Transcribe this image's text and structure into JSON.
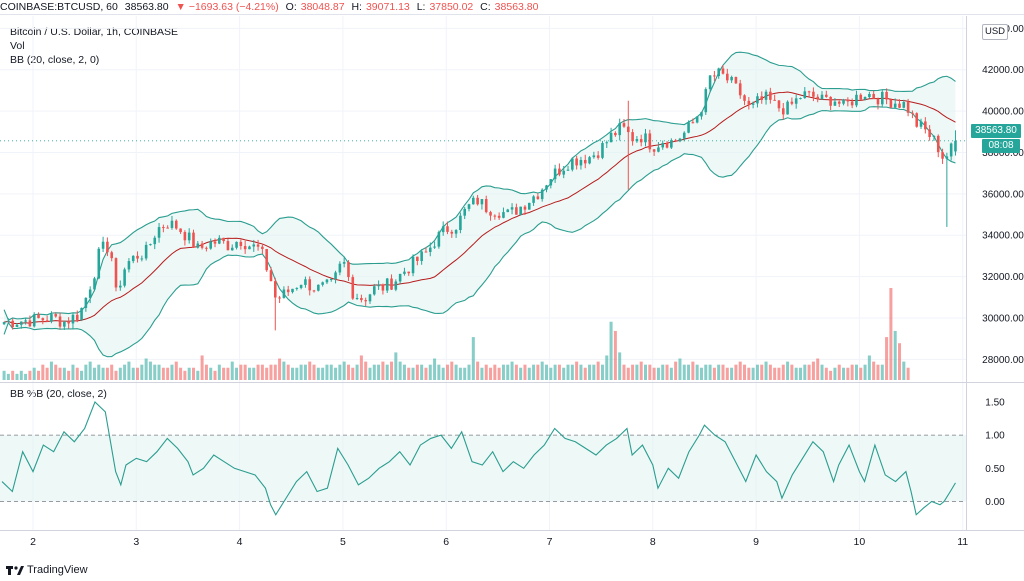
{
  "header": {
    "symbol": "COINBASE:BTCUSD, 60",
    "last": "38563.80",
    "change": "▼ −1693.63 (−4.21%)",
    "open_label": "O:",
    "open": "38048.87",
    "high_label": "H:",
    "high": "39071.13",
    "low_label": "L:",
    "low": "37850.02",
    "close_label": "C:",
    "close": "38563.80"
  },
  "legend": {
    "title": "Bitcoin / U.S. Dollar, 1h, COINBASE",
    "vol": "Vol",
    "bb": "BB (20, close, 2, 0)",
    "bbpct": "BB %B (20, close, 2)"
  },
  "price_axis": {
    "currency": "USD",
    "ticks": [
      "44000.00",
      "42000.00",
      "40000.00",
      "38000.00",
      "36000.00",
      "34000.00",
      "32000.00",
      "30000.00",
      "28000.00"
    ]
  },
  "price_tag": {
    "price": "38563.80",
    "countdown": "08:08"
  },
  "pct_axis": {
    "ticks": [
      "1.50",
      "1.00",
      "0.50",
      "0.00"
    ]
  },
  "time_axis": {
    "ticks": [
      "2",
      "3",
      "4",
      "5",
      "6",
      "7",
      "8",
      "9",
      "10",
      "11"
    ]
  },
  "footer": {
    "brand": "TradingView"
  },
  "colors": {
    "up": "#26a69a",
    "down": "#ef5350",
    "band": "#2a9d8f",
    "basis": "#b71c1c",
    "fill": "#e0f2f1"
  },
  "chart_data": [
    {
      "type": "candlestick",
      "title": "Bitcoin / U.S. Dollar, 1h, COINBASE",
      "x_ticks": [
        "2",
        "3",
        "4",
        "5",
        "6",
        "7",
        "8",
        "9",
        "10",
        "11"
      ],
      "ylim": [
        27000,
        44500
      ],
      "close_path": [
        [
          1.7,
          29800
        ],
        [
          2.0,
          29900
        ],
        [
          2.2,
          30000
        ],
        [
          2.3,
          29800
        ],
        [
          2.45,
          30200
        ],
        [
          2.5,
          30800
        ],
        [
          2.6,
          32300
        ],
        [
          2.65,
          33300
        ],
        [
          2.75,
          33500
        ],
        [
          2.8,
          31100
        ],
        [
          2.9,
          32600
        ],
        [
          3.0,
          33000
        ],
        [
          3.1,
          33200
        ],
        [
          3.2,
          34300
        ],
        [
          3.3,
          34600
        ],
        [
          3.4,
          34400
        ],
        [
          3.5,
          33900
        ],
        [
          3.6,
          33300
        ],
        [
          3.7,
          33600
        ],
        [
          3.8,
          33700
        ],
        [
          3.9,
          33500
        ],
        [
          4.0,
          33800
        ],
        [
          4.1,
          33500
        ],
        [
          4.2,
          33300
        ],
        [
          4.3,
          31900
        ],
        [
          4.35,
          30900
        ],
        [
          4.45,
          31200
        ],
        [
          4.6,
          31800
        ],
        [
          4.75,
          31400
        ],
        [
          4.9,
          31600
        ],
        [
          5.0,
          32800
        ],
        [
          5.1,
          31200
        ],
        [
          5.2,
          30900
        ],
        [
          5.3,
          31400
        ],
        [
          5.4,
          31500
        ],
        [
          5.5,
          31800
        ],
        [
          5.6,
          32300
        ],
        [
          5.8,
          33100
        ],
        [
          5.9,
          33800
        ],
        [
          6.0,
          34300
        ],
        [
          6.1,
          34500
        ],
        [
          6.2,
          35300
        ],
        [
          6.3,
          35700
        ],
        [
          6.4,
          35300
        ],
        [
          6.5,
          35200
        ],
        [
          6.6,
          35000
        ],
        [
          6.7,
          35300
        ],
        [
          6.8,
          35700
        ],
        [
          6.9,
          36100
        ],
        [
          7.0,
          36800
        ],
        [
          7.1,
          37200
        ],
        [
          7.2,
          37600
        ],
        [
          7.3,
          37700
        ],
        [
          7.4,
          37800
        ],
        [
          7.5,
          38200
        ],
        [
          7.6,
          38800
        ],
        [
          7.7,
          39200
        ],
        [
          7.8,
          38700
        ],
        [
          7.9,
          38800
        ],
        [
          8.0,
          38300
        ],
        [
          8.1,
          38600
        ],
        [
          8.2,
          38500
        ],
        [
          8.3,
          38900
        ],
        [
          8.4,
          39500
        ],
        [
          8.5,
          40500
        ],
        [
          8.55,
          41600
        ],
        [
          8.65,
          41800
        ],
        [
          8.75,
          41400
        ],
        [
          8.85,
          40800
        ],
        [
          8.95,
          40000
        ],
        [
          9.0,
          40400
        ],
        [
          9.1,
          40600
        ],
        [
          9.2,
          40200
        ],
        [
          9.3,
          40100
        ],
        [
          9.45,
          40800
        ],
        [
          9.55,
          40700
        ],
        [
          9.65,
          40500
        ],
        [
          9.75,
          40600
        ],
        [
          9.85,
          40200
        ],
        [
          9.95,
          40600
        ],
        [
          10.05,
          40900
        ],
        [
          10.15,
          40700
        ],
        [
          10.3,
          40500
        ],
        [
          10.45,
          40300
        ],
        [
          10.55,
          39400
        ],
        [
          10.65,
          39000
        ],
        [
          10.75,
          38400
        ],
        [
          10.8,
          37800
        ],
        [
          10.87,
          37900
        ],
        [
          10.92,
          38600
        ]
      ]
    },
    {
      "type": "bar",
      "title": "Vol",
      "values": [
        3,
        2,
        3,
        2,
        3,
        2,
        3,
        4,
        3,
        5,
        4,
        6,
        5,
        4,
        4,
        3,
        5,
        4,
        3,
        5,
        6,
        4,
        5,
        4,
        4,
        5,
        3,
        4,
        5,
        6,
        4,
        4,
        5,
        7,
        6,
        5,
        5,
        4,
        4,
        5,
        6,
        4,
        3,
        4,
        4,
        3,
        8,
        5,
        4,
        3,
        5,
        4,
        4,
        6,
        4,
        5,
        5,
        4,
        4,
        5,
        5,
        4,
        5,
        5,
        7,
        6,
        5,
        4,
        4,
        5,
        5,
        6,
        5,
        4,
        4,
        5,
        5,
        4,
        5,
        6,
        5,
        4,
        5,
        8,
        6,
        4,
        5,
        5,
        6,
        5,
        6,
        9,
        6,
        5,
        4,
        4,
        5,
        5,
        4,
        5,
        7,
        5,
        4,
        5,
        6,
        5,
        4,
        4,
        5,
        14,
        6,
        4,
        5,
        4,
        5,
        4,
        5,
        5,
        6,
        5,
        4,
        5,
        4,
        5,
        5,
        6,
        5,
        4,
        5,
        5,
        4,
        5,
        5,
        6,
        5,
        4,
        5,
        5,
        6,
        5,
        8,
        19,
        16,
        9,
        5,
        4,
        5,
        5,
        6,
        5,
        5,
        4,
        4,
        5,
        5,
        4,
        6,
        7,
        5,
        5,
        6,
        5,
        4,
        5,
        5,
        4,
        5,
        5,
        4,
        4,
        5,
        6,
        5,
        4,
        4,
        5,
        5,
        6,
        5,
        4,
        4,
        5,
        6,
        5,
        4,
        4,
        5,
        5,
        6,
        7,
        5,
        4,
        3,
        4,
        5,
        4,
        4,
        5,
        5,
        4,
        5,
        8,
        6,
        5,
        5,
        14,
        30,
        16,
        12,
        6,
        4
      ]
    },
    {
      "type": "line",
      "title": "BB %B (20, close, 2)",
      "ylim": [
        -0.4,
        1.65
      ],
      "y_ticks": [
        1.5,
        1.0,
        0.5,
        0.0
      ],
      "points": [
        [
          1.7,
          0.3
        ],
        [
          1.8,
          0.15
        ],
        [
          1.9,
          0.75
        ],
        [
          2.0,
          0.45
        ],
        [
          2.1,
          0.85
        ],
        [
          2.2,
          0.75
        ],
        [
          2.3,
          1.05
        ],
        [
          2.4,
          0.9
        ],
        [
          2.5,
          1.1
        ],
        [
          2.6,
          1.5
        ],
        [
          2.7,
          1.35
        ],
        [
          2.8,
          0.45
        ],
        [
          2.85,
          0.25
        ],
        [
          2.9,
          0.55
        ],
        [
          3.0,
          0.65
        ],
        [
          3.1,
          0.6
        ],
        [
          3.2,
          0.75
        ],
        [
          3.3,
          0.95
        ],
        [
          3.4,
          0.8
        ],
        [
          3.5,
          0.6
        ],
        [
          3.55,
          0.4
        ],
        [
          3.65,
          0.5
        ],
        [
          3.75,
          0.7
        ],
        [
          3.85,
          0.6
        ],
        [
          3.95,
          0.5
        ],
        [
          4.05,
          0.45
        ],
        [
          4.15,
          0.4
        ],
        [
          4.25,
          0.2
        ],
        [
          4.3,
          -0.05
        ],
        [
          4.35,
          -0.2
        ],
        [
          4.45,
          0.05
        ],
        [
          4.55,
          0.3
        ],
        [
          4.65,
          0.45
        ],
        [
          4.75,
          0.15
        ],
        [
          4.85,
          0.2
        ],
        [
          4.95,
          0.8
        ],
        [
          5.05,
          0.55
        ],
        [
          5.15,
          0.25
        ],
        [
          5.25,
          0.35
        ],
        [
          5.35,
          0.5
        ],
        [
          5.45,
          0.6
        ],
        [
          5.55,
          0.75
        ],
        [
          5.65,
          0.55
        ],
        [
          5.75,
          0.85
        ],
        [
          5.85,
          0.95
        ],
        [
          5.95,
          1.0
        ],
        [
          6.05,
          0.8
        ],
        [
          6.15,
          1.05
        ],
        [
          6.25,
          0.6
        ],
        [
          6.35,
          0.55
        ],
        [
          6.45,
          0.75
        ],
        [
          6.55,
          0.45
        ],
        [
          6.65,
          0.6
        ],
        [
          6.75,
          0.5
        ],
        [
          6.85,
          0.7
        ],
        [
          6.95,
          0.85
        ],
        [
          7.05,
          1.1
        ],
        [
          7.15,
          0.95
        ],
        [
          7.25,
          0.9
        ],
        [
          7.35,
          0.8
        ],
        [
          7.45,
          0.7
        ],
        [
          7.55,
          0.85
        ],
        [
          7.65,
          0.95
        ],
        [
          7.75,
          1.1
        ],
        [
          7.8,
          0.7
        ],
        [
          7.9,
          0.85
        ],
        [
          8.0,
          0.55
        ],
        [
          8.05,
          0.2
        ],
        [
          8.15,
          0.5
        ],
        [
          8.25,
          0.35
        ],
        [
          8.35,
          0.75
        ],
        [
          8.45,
          1.0
        ],
        [
          8.5,
          1.15
        ],
        [
          8.6,
          1.0
        ],
        [
          8.7,
          0.9
        ],
        [
          8.8,
          0.6
        ],
        [
          8.9,
          0.3
        ],
        [
          9.0,
          0.7
        ],
        [
          9.1,
          0.45
        ],
        [
          9.2,
          0.3
        ],
        [
          9.25,
          0.05
        ],
        [
          9.35,
          0.4
        ],
        [
          9.45,
          0.65
        ],
        [
          9.55,
          0.9
        ],
        [
          9.65,
          0.75
        ],
        [
          9.75,
          0.3
        ],
        [
          9.8,
          0.55
        ],
        [
          9.9,
          0.85
        ],
        [
          10.0,
          0.45
        ],
        [
          10.05,
          0.3
        ],
        [
          10.15,
          0.85
        ],
        [
          10.25,
          0.4
        ],
        [
          10.35,
          0.3
        ],
        [
          10.45,
          0.45
        ],
        [
          10.5,
          0.15
        ],
        [
          10.55,
          -0.2
        ],
        [
          10.62,
          -0.1
        ],
        [
          10.7,
          0.0
        ],
        [
          10.78,
          -0.05
        ],
        [
          10.82,
          0.0
        ],
        [
          10.88,
          0.15
        ],
        [
          10.93,
          0.28
        ]
      ]
    }
  ]
}
